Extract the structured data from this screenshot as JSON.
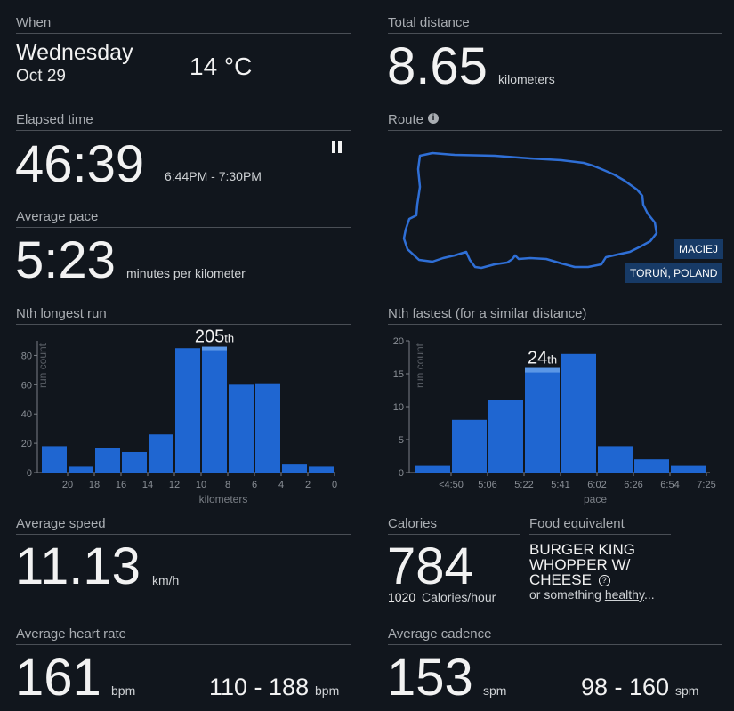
{
  "when": {
    "title": "When",
    "weekday": "Wednesday",
    "date": "Oct 29",
    "temperature": "14 °C"
  },
  "distance": {
    "title": "Total distance",
    "value": "8.65",
    "unit": "kilometers"
  },
  "elapsed": {
    "title": "Elapsed time",
    "value": "46:39",
    "range": "6:44PM - 7:30PM",
    "pause_icon": "pause-icon"
  },
  "route": {
    "title": "Route",
    "info_icon": "info-icon",
    "name_tag": "MACIEJ",
    "location_tag": "TORUŃ, POLAND",
    "line_color": "#2f6fd6"
  },
  "pace": {
    "title": "Average pace",
    "value": "5:23",
    "unit": "minutes per kilometer"
  },
  "nth_longest": {
    "title": "Nth longest run",
    "rank": "205",
    "suffix": "th"
  },
  "nth_fastest": {
    "title": "Nth fastest (for a similar distance)",
    "rank": "24",
    "suffix": "th"
  },
  "speed": {
    "title": "Average speed",
    "value": "11.13",
    "unit": "km/h"
  },
  "calories": {
    "title": "Calories",
    "value": "784",
    "per_hour_value": "1020",
    "per_hour_label": "Calories/hour"
  },
  "food": {
    "title": "Food equivalent",
    "line1": "BURGER KING",
    "line2": "WHOPPER W/",
    "line3": "CHEESE",
    "help_icon": "question-circle-icon",
    "alt_prefix": "or something ",
    "alt_link": "healthy",
    "alt_suffix": "..."
  },
  "heart_rate": {
    "title": "Average heart rate",
    "value": "161",
    "unit": "bpm",
    "range": "110 - 188",
    "range_unit": "bpm"
  },
  "cadence": {
    "title": "Average cadence",
    "value": "153",
    "unit": "spm",
    "range": "98 - 160",
    "range_unit": "spm"
  },
  "colors": {
    "background": "#11161d",
    "bar": "#1f66d1",
    "bar_highlight": "#5b97e6",
    "rule": "#4a4f56"
  },
  "chart_data": [
    {
      "type": "bar",
      "title": "Nth longest run",
      "xlabel": "kilometers",
      "ylabel": "run count",
      "categories": [
        "22-20",
        "20-18",
        "18-16",
        "16-14",
        "14-12",
        "12-10",
        "10-8",
        "8-6",
        "6-4",
        "4-2",
        "2-0"
      ],
      "values": [
        18,
        4,
        17,
        14,
        26,
        85,
        86,
        60,
        61,
        6,
        4
      ],
      "x_ticks": [
        "20",
        "18",
        "16",
        "14",
        "12",
        "10",
        "8",
        "6",
        "4",
        "2",
        "0"
      ],
      "y_ticks": [
        0,
        20,
        40,
        60,
        80
      ],
      "ylim": [
        0,
        90
      ],
      "highlight_index": 6,
      "highlight_label": "205"
    },
    {
      "type": "bar",
      "title": "Nth fastest (for a similar distance)",
      "xlabel": "pace",
      "ylabel": "run count",
      "categories": [
        "<4:50",
        "4:50-5:06",
        "5:06-5:22",
        "5:22-5:41",
        "5:41-6:02",
        "6:02-6:26",
        "6:26-6:54",
        "6:54-7:25"
      ],
      "values": [
        1,
        8,
        11,
        16,
        18,
        4,
        2,
        1
      ],
      "x_ticks": [
        "<4:50",
        "5:06",
        "5:22",
        "5:41",
        "6:02",
        "6:26",
        "6:54",
        "7:25"
      ],
      "y_ticks": [
        0,
        5,
        10,
        15,
        20
      ],
      "ylim": [
        0,
        20
      ],
      "highlight_index": 3,
      "highlight_label": "24"
    }
  ]
}
